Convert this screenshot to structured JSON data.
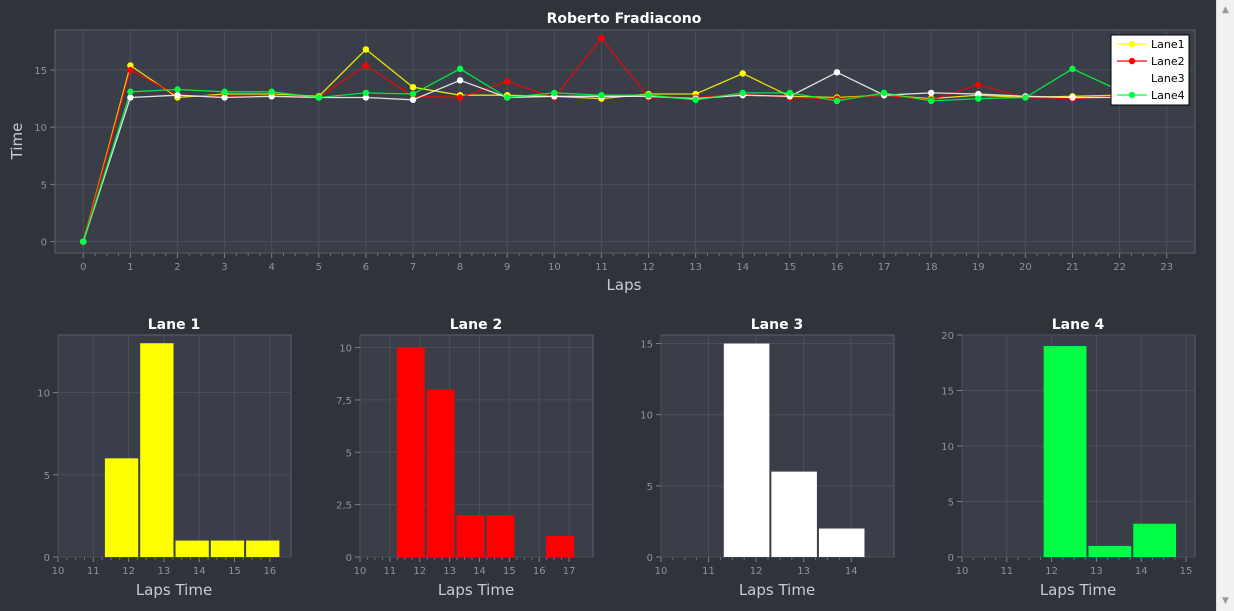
{
  "main_chart": {
    "title": "Roberto Fradiacono",
    "xlabel": "Laps",
    "ylabel": "Time"
  },
  "chart_data": [
    {
      "type": "line",
      "title": "Roberto Fradiacono",
      "xlabel": "Laps",
      "ylabel": "Time",
      "x": [
        0,
        1,
        2,
        3,
        4,
        5,
        6,
        7,
        8,
        9,
        10,
        11,
        12,
        13,
        14,
        15,
        16,
        17,
        18,
        19,
        20,
        21,
        22
      ],
      "xlim": [
        -0.6,
        23.6
      ],
      "ylim": [
        -1,
        18.5
      ],
      "xticks": [
        0,
        1,
        2,
        3,
        4,
        5,
        6,
        7,
        8,
        9,
        10,
        11,
        12,
        13,
        14,
        15,
        16,
        17,
        18,
        19,
        20,
        21,
        22,
        23
      ],
      "yticks": [
        0,
        5,
        10,
        15
      ],
      "grid": true,
      "legend_position": "top-right",
      "series": [
        {
          "name": "Lane1",
          "color": "#ffff00",
          "values": [
            0,
            15.4,
            12.6,
            12.9,
            12.9,
            12.7,
            16.8,
            13.5,
            12.8,
            12.8,
            12.7,
            12.5,
            12.9,
            12.9,
            14.7,
            12.7,
            12.6,
            12.8,
            12.5,
            12.8,
            12.6,
            12.7,
            12.8
          ]
        },
        {
          "name": "Lane2",
          "color": "#ff0000",
          "values": [
            0,
            15.0,
            12.8,
            12.7,
            12.8,
            12.6,
            15.4,
            12.7,
            12.6,
            14.0,
            12.6,
            17.8,
            12.6,
            12.6,
            12.9,
            12.6,
            12.5,
            12.8,
            12.4,
            13.7,
            12.6,
            12.5,
            12.7
          ]
        },
        {
          "name": "Lane3",
          "color": "#ffffff",
          "values": [
            0,
            12.6,
            12.8,
            12.6,
            12.7,
            12.6,
            12.6,
            12.4,
            14.1,
            12.6,
            12.7,
            12.7,
            12.7,
            12.5,
            12.8,
            12.7,
            14.8,
            12.8,
            13.0,
            12.9,
            12.7,
            12.6,
            12.6
          ]
        },
        {
          "name": "Lane4",
          "color": "#00ff44",
          "values": [
            0,
            13.1,
            13.3,
            13.1,
            13.1,
            12.6,
            13.0,
            12.9,
            15.1,
            12.6,
            13.0,
            12.8,
            12.8,
            12.4,
            13.0,
            13.0,
            12.3,
            13.0,
            12.3,
            12.5,
            12.6,
            15.1,
            13.2
          ]
        }
      ]
    },
    {
      "type": "bar",
      "title": "Lane 1",
      "xlabel": "Laps Time",
      "color": "#ffff00",
      "xlim": [
        10,
        16.6
      ],
      "ylim": [
        0,
        13.5
      ],
      "xticks": [
        10,
        11,
        12,
        13,
        14,
        15,
        16
      ],
      "yticks": [
        0,
        5,
        10
      ],
      "ytick_labels": [
        "0",
        "5",
        "10"
      ],
      "bins": [
        [
          11.3,
          12.3,
          6
        ],
        [
          12.3,
          13.3,
          13
        ],
        [
          13.3,
          14.3,
          1
        ],
        [
          14.3,
          15.3,
          1
        ],
        [
          15.3,
          16.3,
          1
        ]
      ]
    },
    {
      "type": "bar",
      "title": "Lane 2",
      "xlabel": "Laps Time",
      "color": "#ff0000",
      "xlim": [
        10,
        17.8
      ],
      "ylim": [
        0,
        10.6
      ],
      "xticks": [
        10,
        11,
        12,
        13,
        14,
        15,
        16,
        17
      ],
      "yticks": [
        0,
        2.5,
        5,
        7.5,
        10
      ],
      "ytick_labels": [
        "0",
        "2,5",
        "5",
        "7,5",
        "10"
      ],
      "bins": [
        [
          11.2,
          12.2,
          10
        ],
        [
          12.2,
          13.2,
          8
        ],
        [
          13.2,
          14.2,
          2
        ],
        [
          14.2,
          15.2,
          2
        ],
        [
          16.2,
          17.2,
          1
        ]
      ]
    },
    {
      "type": "bar",
      "title": "Lane 3",
      "xlabel": "Laps Time",
      "color": "#ffffff",
      "xlim": [
        10,
        14.9
      ],
      "ylim": [
        0,
        15.6
      ],
      "xticks": [
        10,
        11,
        12,
        13,
        14
      ],
      "yticks": [
        0,
        5,
        10,
        15
      ],
      "ytick_labels": [
        "0",
        "5",
        "10",
        "15"
      ],
      "bins": [
        [
          11.3,
          12.3,
          15
        ],
        [
          12.3,
          13.3,
          6
        ],
        [
          13.3,
          14.3,
          2
        ]
      ]
    },
    {
      "type": "bar",
      "title": "Lane 4",
      "xlabel": "Laps Time",
      "color": "#00ff44",
      "xlim": [
        10,
        15.2
      ],
      "ylim": [
        0,
        20
      ],
      "xticks": [
        10,
        11,
        12,
        13,
        14,
        15
      ],
      "yticks": [
        0,
        5,
        10,
        15,
        20
      ],
      "ytick_labels": [
        "0",
        "5",
        "10",
        "15",
        "20"
      ],
      "bins": [
        [
          11.8,
          12.8,
          19
        ],
        [
          12.8,
          13.8,
          1
        ],
        [
          13.8,
          14.8,
          3
        ]
      ]
    }
  ]
}
